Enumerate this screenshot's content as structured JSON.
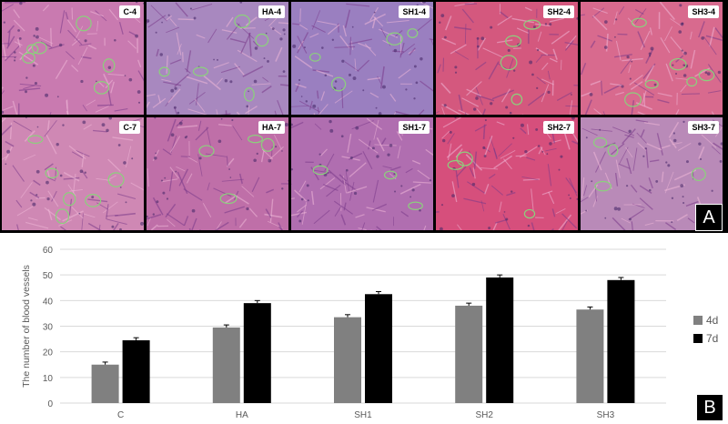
{
  "figure": {
    "panel_a_letter": "A",
    "panel_b_letter": "B"
  },
  "micrographs": [
    {
      "label": "C-4",
      "tint": "#c97ab0"
    },
    {
      "label": "HA-4",
      "tint": "#a888bf"
    },
    {
      "label": "SH1-4",
      "tint": "#9a7fc0"
    },
    {
      "label": "SH2-4",
      "tint": "#d4587e"
    },
    {
      "label": "SH3-4",
      "tint": "#d86a8e"
    },
    {
      "label": "C-7",
      "tint": "#cf88b4"
    },
    {
      "label": "HA-7",
      "tint": "#bf6fa8"
    },
    {
      "label": "SH1-7",
      "tint": "#b06eb0"
    },
    {
      "label": "SH2-7",
      "tint": "#d64f7c"
    },
    {
      "label": "SH3-7",
      "tint": "#b98ab8"
    }
  ],
  "colors": {
    "series_4d": "#808080",
    "series_7d": "#000000",
    "grid": "#d9d9d9",
    "text": "#595959",
    "vessel_circle": "#8bd17c"
  },
  "chart_data": {
    "type": "bar",
    "title": "",
    "xlabel": "",
    "ylabel": "The number of blood vessels",
    "categories": [
      "C",
      "HA",
      "SH1",
      "SH2",
      "SH3"
    ],
    "ylim": [
      0,
      60
    ],
    "yticks": [
      0,
      10,
      20,
      30,
      40,
      50,
      60
    ],
    "grid": true,
    "legend_position": "right",
    "series": [
      {
        "name": "4d",
        "values": [
          15,
          29.5,
          33.5,
          38,
          36.5
        ],
        "errors": [
          1,
          1,
          1,
          1,
          1
        ]
      },
      {
        "name": "7d",
        "values": [
          24.5,
          39,
          42.5,
          49,
          48
        ],
        "errors": [
          1,
          1,
          1,
          1,
          1
        ]
      }
    ]
  }
}
